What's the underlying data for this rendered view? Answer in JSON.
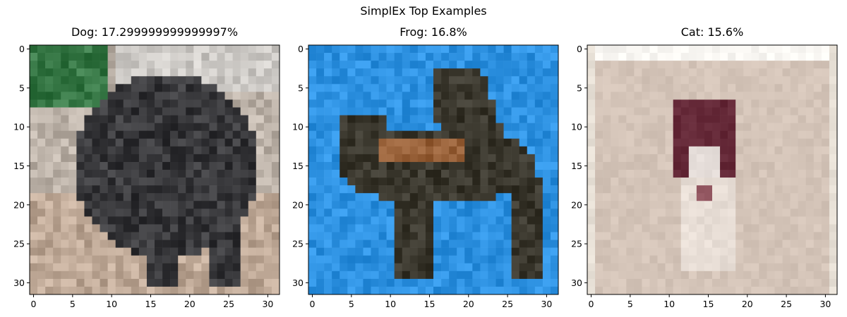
{
  "title": "SimplEx Top Examples",
  "panels": [
    {
      "title": "Dog: 17.299999999999997%"
    },
    {
      "title": "Frog: 16.8%"
    },
    {
      "title": "Cat: 15.6%"
    }
  ],
  "chart_data": [
    {
      "type": "image",
      "title": "Dog: 17.299999999999997%",
      "xlim": [
        -0.5,
        31.5
      ],
      "ylim": [
        31.5,
        -0.5
      ],
      "xticks": [
        0,
        5,
        10,
        15,
        20,
        25,
        30
      ],
      "yticks": [
        0,
        5,
        10,
        15,
        20,
        25,
        30
      ],
      "image_shape": [
        32,
        32,
        3
      ]
    },
    {
      "type": "image",
      "title": "Frog: 16.8%",
      "xlim": [
        -0.5,
        31.5
      ],
      "ylim": [
        31.5,
        -0.5
      ],
      "xticks": [
        0,
        5,
        10,
        15,
        20,
        25,
        30
      ],
      "yticks": [
        0,
        5,
        10,
        15,
        20,
        25,
        30
      ],
      "image_shape": [
        32,
        32,
        3
      ]
    },
    {
      "type": "image",
      "title": "Cat: 15.6%",
      "xlim": [
        -0.5,
        31.5
      ],
      "ylim": [
        31.5,
        -0.5
      ],
      "xticks": [
        0,
        5,
        10,
        15,
        20,
        25,
        30
      ],
      "yticks": [
        0,
        5,
        10,
        15,
        20,
        25,
        30
      ],
      "image_shape": [
        32,
        32,
        3
      ]
    }
  ]
}
